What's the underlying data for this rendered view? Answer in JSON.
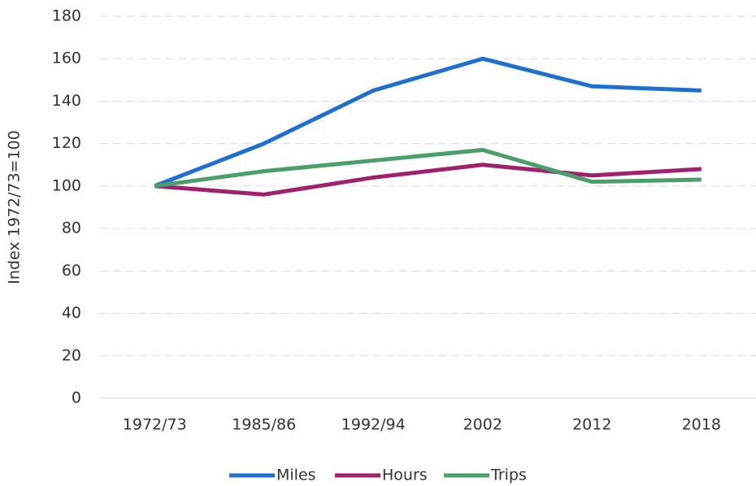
{
  "chart_data": {
    "type": "line",
    "y_label": "Index 1972/73=100",
    "categories": [
      "1972/73",
      "1985/86",
      "1992/94",
      "2002",
      "2012",
      "2018"
    ],
    "series": [
      {
        "name": "Miles",
        "color": "#1f6fd0",
        "values": [
          100,
          120,
          145,
          160,
          147,
          145
        ]
      },
      {
        "name": "Hours",
        "color": "#a0206e",
        "values": [
          100,
          96,
          104,
          110,
          105,
          108
        ]
      },
      {
        "name": "Trips",
        "color": "#4a9e6a",
        "values": [
          100,
          107,
          112,
          117,
          102,
          103
        ]
      }
    ],
    "ylim": [
      0,
      180
    ],
    "yticks": [
      0,
      20,
      40,
      60,
      80,
      100,
      120,
      140,
      160,
      180
    ],
    "grid": true,
    "legend": "bottom"
  }
}
